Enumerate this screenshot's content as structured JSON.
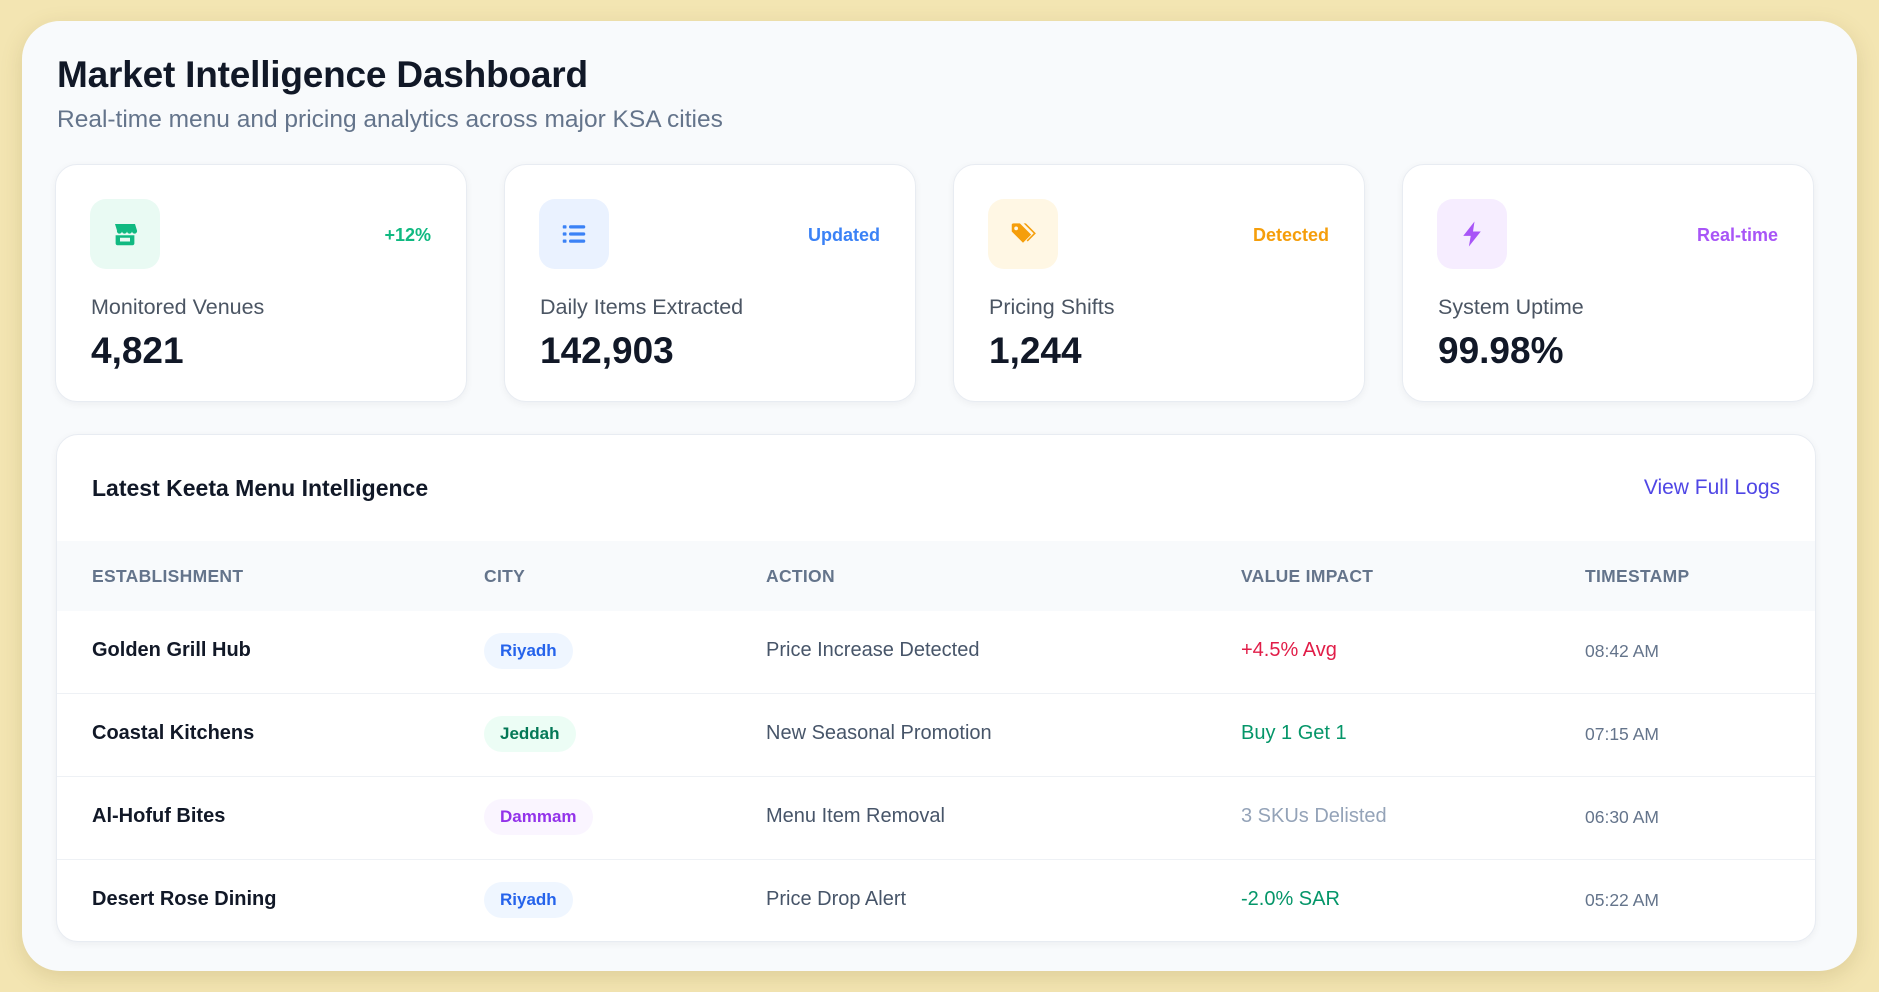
{
  "header": {
    "title": "Market Intelligence Dashboard",
    "subtitle": "Real-time menu and pricing analytics across major KSA cities"
  },
  "cards": [
    {
      "icon": "store-icon",
      "badge": "+12%",
      "badge_color": "#10b981",
      "icon_bg": "#e9faf3",
      "icon_color": "#10b981",
      "label": "Monitored Venues",
      "value": "4,821"
    },
    {
      "icon": "list-icon",
      "badge": "Updated",
      "badge_color": "#3b82f6",
      "icon_bg": "#eaf2ff",
      "icon_color": "#3b82f6",
      "label": "Daily Items Extracted",
      "value": "142,903"
    },
    {
      "icon": "tags-icon",
      "badge": "Detected",
      "badge_color": "#f59e0b",
      "icon_bg": "#fff7e4",
      "icon_color": "#f59e0b",
      "label": "Pricing Shifts",
      "value": "1,244"
    },
    {
      "icon": "bolt-icon",
      "badge": "Real-time",
      "badge_color": "#a855f7",
      "icon_bg": "#f6edff",
      "icon_color": "#a855f7",
      "label": "System Uptime",
      "value": "99.98%"
    }
  ],
  "panel": {
    "title": "Latest Keeta Menu Intelligence",
    "link": "View Full Logs",
    "columns": [
      "ESTABLISHMENT",
      "CITY",
      "ACTION",
      "VALUE IMPACT",
      "TIMESTAMP"
    ],
    "rows": [
      {
        "establishment": "Golden Grill Hub",
        "city": "Riyadh",
        "city_bg": "#eff6ff",
        "city_color": "#2563eb",
        "action": "Price Increase Detected",
        "value": "+4.5% Avg",
        "value_color": "#e11d48",
        "timestamp": "08:42 AM"
      },
      {
        "establishment": "Coastal Kitchens",
        "city": "Jeddah",
        "city_bg": "#ecfdf5",
        "city_color": "#047857",
        "action": "New Seasonal Promotion",
        "value": "Buy 1 Get 1",
        "value_color": "#059669",
        "timestamp": "07:15 AM"
      },
      {
        "establishment": "Al-Hofuf Bites",
        "city": "Dammam",
        "city_bg": "#faf5ff",
        "city_color": "#9333ea",
        "action": "Menu Item Removal",
        "value": "3 SKUs Delisted",
        "value_color": "#94a3b8",
        "timestamp": "06:30 AM"
      },
      {
        "establishment": "Desert Rose Dining",
        "city": "Riyadh",
        "city_bg": "#eff6ff",
        "city_color": "#2563eb",
        "action": "Price Drop Alert",
        "value": "-2.0% SAR",
        "value_color": "#059669",
        "timestamp": "05:22 AM"
      }
    ]
  }
}
